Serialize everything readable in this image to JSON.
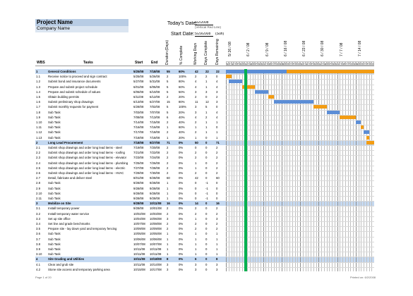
{
  "header": {
    "project_name": "Project Name",
    "company_name": "Company Name",
    "todays_date_label": "Today's Date:",
    "todays_date_value": "6/2/2008",
    "todays_date_sub": "(Vertical Red Line)",
    "start_date_label": "Start Date:",
    "start_date_value": "5/29/2008",
    "start_date_day": "(Sun)"
  },
  "columns": {
    "wbs": "WBS",
    "tasks": "Tasks",
    "start": "Start",
    "end": "End",
    "duration": "Duration (Days)",
    "pct_complete": "% Complete",
    "working_days": "Working Days",
    "days_complete": "Days Complete",
    "days_remaining": "Days Remaining"
  },
  "timeline": {
    "week_labels": [
      "5/ 26 / 08",
      "6 / 2 / 08",
      "6 / 9 / 08",
      "6 / 16 / 08",
      "6 / 23 / 08",
      "6 / 30 / 08",
      "7 / 7 / 08",
      "7 / 14 / 08"
    ],
    "day_letters": [
      "M",
      "T",
      "W",
      "T",
      "F",
      "S",
      "S",
      "M",
      "T",
      "W",
      "T",
      "F",
      "S",
      "S",
      "M",
      "T",
      "W",
      "T",
      "F",
      "S",
      "S",
      "M",
      "T",
      "W",
      "T",
      "F",
      "S",
      "S",
      "M",
      "T",
      "W",
      "T",
      "F",
      "S",
      "S",
      "M",
      "T",
      "W",
      "T",
      "F",
      "S",
      "S",
      "M",
      "T",
      "W",
      "T",
      "F",
      "S",
      "S",
      "M",
      "T",
      "W",
      "T",
      "F",
      "S",
      "S"
    ],
    "today_day_index": 7,
    "total_days": 56
  },
  "colors": {
    "phase_bar": "#5b8dd6",
    "task_bar": "#f39c12",
    "today_line": "#00b050",
    "header_fill": "#b8cce4",
    "phase_row": "#c5d9f1"
  },
  "rows": [
    {
      "wbs": "1",
      "task": "General Conditions",
      "start": "5/25/08",
      "end": "7/18/08",
      "dur": "55",
      "pct": "60%",
      "wd": "42",
      "dc": "22",
      "dr": "22",
      "phase": true,
      "bar": [
        0,
        56
      ],
      "split": 23
    },
    {
      "wbs": "1.1",
      "task": "Receive notice to proceed and sign contract",
      "start": "5/25/08",
      "end": "5/26/08",
      "dur": "2",
      "pct": "100%",
      "wd": "2",
      "dc": "2",
      "dr": "0",
      "bar": [
        0,
        1
      ]
    },
    {
      "wbs": "1.2",
      "task": "Submit bond and insurance documents",
      "start": "5/27/08",
      "end": "5/31/08",
      "dur": "5",
      "pct": "80%",
      "wd": "4",
      "dc": "1",
      "dr": "4",
      "bar": [
        1,
        5
      ]
    },
    {
      "wbs": "1.3",
      "task": "Prepare and submit project schedule",
      "start": "6/01/08",
      "end": "6/05/08",
      "dur": "5",
      "pct": "60%",
      "wd": "4",
      "dc": "1",
      "dr": "4",
      "bar": [
        6,
        10
      ]
    },
    {
      "wbs": "1.4",
      "task": "Prepare and submit schedule of values",
      "start": "6/06/08",
      "end": "6/10/08",
      "dur": "5",
      "pct": "50%",
      "wd": "3",
      "dc": "3",
      "dr": "3",
      "bar": [
        11,
        15
      ]
    },
    {
      "wbs": "1.5",
      "task": "Obtain building permits",
      "start": "6/11/08",
      "end": "6/12/08",
      "dur": "2",
      "pct": "20%",
      "wd": "2",
      "dc": "0",
      "dr": "2",
      "bar": [
        16,
        17
      ]
    },
    {
      "wbs": "1.6",
      "task": "Submit preliminary shop drawings",
      "start": "6/13/08",
      "end": "6/27/08",
      "dur": "15",
      "pct": "80%",
      "wd": "11",
      "dc": "12",
      "dr": "3",
      "bar": [
        18,
        32
      ]
    },
    {
      "wbs": "1.7",
      "task": "Submit monthly requests for payment",
      "start": "6/28/08",
      "end": "7/02/08",
      "dur": "5",
      "pct": "100%",
      "wd": "3",
      "dc": "5",
      "dr": "0",
      "bar": [
        33,
        37
      ]
    },
    {
      "wbs": "1.8",
      "task": "Sub Task",
      "start": "7/03/08",
      "end": "7/07/08",
      "dur": "5",
      "pct": "20%",
      "wd": "3",
      "dc": "1",
      "dr": "4",
      "bar": [
        38,
        42
      ]
    },
    {
      "wbs": "1.9",
      "task": "Sub Task",
      "start": "7/08/08",
      "end": "7/13/08",
      "dur": "6",
      "pct": "40%",
      "wd": "4",
      "dc": "2",
      "dr": "4",
      "bar": [
        43,
        48
      ]
    },
    {
      "wbs": "1.10",
      "task": "Sub Task",
      "start": "7/14/08",
      "end": "7/15/08",
      "dur": "2",
      "pct": "40%",
      "wd": "2",
      "dc": "1",
      "dr": "1",
      "bar": [
        49,
        50
      ]
    },
    {
      "wbs": "1.11",
      "task": "Sub Task",
      "start": "7/16/08",
      "end": "7/16/08",
      "dur": "1",
      "pct": "60%",
      "wd": "1",
      "dc": "1",
      "dr": "0",
      "bar": [
        51,
        51
      ]
    },
    {
      "wbs": "1.12",
      "task": "Sub Task",
      "start": "7/17/08",
      "end": "7/18/08",
      "dur": "2",
      "pct": "40%",
      "wd": "2",
      "dc": "1",
      "dr": "1",
      "bar": [
        52,
        53
      ]
    },
    {
      "wbs": "1.13",
      "task": "Sub Task",
      "start": "7/18/08",
      "end": "7/18/08",
      "dur": "1",
      "pct": "20%",
      "wd": "1",
      "dc": "0",
      "dr": "1",
      "bar": [
        53,
        53
      ]
    },
    {
      "wbs": "2",
      "task": "Long Lead Procurement",
      "start": "7/18/08",
      "end": "9/27/08",
      "dur": "71",
      "pct": "0%",
      "wd": "50",
      "dc": "0",
      "dr": "71",
      "phase": true,
      "bar": [
        53,
        55
      ],
      "split": 53
    },
    {
      "wbs": "2.1",
      "task": "Submit shop drawings and order long lead items - steel",
      "start": "7/19/08",
      "end": "7/20/08",
      "dur": "2",
      "pct": "0%",
      "wd": "0",
      "dc": "0",
      "dr": "2"
    },
    {
      "wbs": "2.2",
      "task": "Submit shop drawings and order long lead items - roofing",
      "start": "7/21/08",
      "end": "7/22/08",
      "dur": "2",
      "pct": "0%",
      "wd": "2",
      "dc": "0",
      "dr": "2"
    },
    {
      "wbs": "2.3",
      "task": "Submit shop drawings and order long lead items - elevator",
      "start": "7/23/08",
      "end": "7/24/08",
      "dur": "2",
      "pct": "0%",
      "wd": "2",
      "dc": "0",
      "dr": "2"
    },
    {
      "wbs": "2.4",
      "task": "Submit shop drawings and order long lead items - plumbing",
      "start": "7/25/08",
      "end": "7/26/08",
      "dur": "2",
      "pct": "0%",
      "wd": "1",
      "dc": "0",
      "dr": "2"
    },
    {
      "wbs": "2.5",
      "task": "Submit shop drawings and order long lead items - electric",
      "start": "7/27/08",
      "end": "7/28/08",
      "dur": "2",
      "pct": "0%",
      "wd": "1",
      "dc": "0",
      "dr": "2"
    },
    {
      "wbs": "2.6",
      "task": "Submit shop drawings and order long lead items - HVAC",
      "start": "7/29/08",
      "end": "7/30/08",
      "dur": "2",
      "pct": "0%",
      "wd": "2",
      "dc": "0",
      "dr": "2"
    },
    {
      "wbs": "2.7",
      "task": "Detail, fabricate and deliver steel",
      "start": "8/01/08",
      "end": "9/28/08",
      "dur": "60",
      "pct": "0%",
      "wd": "42",
      "dc": "0",
      "dr": "60"
    },
    {
      "wbs": "2.8",
      "task": "Sub Task",
      "start": "9/28/08",
      "end": "9/28/08",
      "dur": "1",
      "pct": "0%",
      "wd": "0",
      "dc": "-1",
      "dr": "0"
    },
    {
      "wbs": "2.9",
      "task": "Sub Task",
      "start": "9/28/08",
      "end": "9/28/08",
      "dur": "1",
      "pct": "0%",
      "wd": "0",
      "dc": "-1",
      "dr": "0"
    },
    {
      "wbs": "2.10",
      "task": "Sub Task",
      "start": "9/28/08",
      "end": "9/28/08",
      "dur": "1",
      "pct": "0%",
      "wd": "0",
      "dc": "-1",
      "dr": "0"
    },
    {
      "wbs": "2.11",
      "task": "Sub Task",
      "start": "9/28/08",
      "end": "9/28/08",
      "dur": "1",
      "pct": "0%",
      "wd": "0",
      "dc": "-1",
      "dr": "0"
    },
    {
      "wbs": "3",
      "task": "Mobilize on Site",
      "start": "9/28/08",
      "end": "10/11/08",
      "dur": "16",
      "pct": "0%",
      "wd": "14",
      "dc": "0",
      "dr": "16",
      "phase": true
    },
    {
      "wbs": "3.1",
      "task": "Install temporary power",
      "start": "9/28/08",
      "end": "10/01/08",
      "dur": "2",
      "pct": "0%",
      "wd": "2",
      "dc": "0",
      "dr": "2"
    },
    {
      "wbs": "3.2",
      "task": "Install temporary water service",
      "start": "10/02/08",
      "end": "10/03/08",
      "dur": "2",
      "pct": "0%",
      "wd": "2",
      "dc": "0",
      "dr": "2"
    },
    {
      "wbs": "3.3",
      "task": "Set up site office",
      "start": "10/04/08",
      "end": "10/06/08",
      "dur": "3",
      "pct": "0%",
      "wd": "1",
      "dc": "0",
      "dr": "3"
    },
    {
      "wbs": "3.4",
      "task": "Set line and grade benchmarks",
      "start": "10/07/08",
      "end": "10/08/08",
      "dur": "2",
      "pct": "0%",
      "wd": "2",
      "dc": "0",
      "dr": "2"
    },
    {
      "wbs": "3.5",
      "task": "Prepare site - lay down yard and temporary fencing",
      "start": "10/09/08",
      "end": "10/09/08",
      "dur": "2",
      "pct": "0%",
      "wd": "2",
      "dc": "0",
      "dr": "2"
    },
    {
      "wbs": "3.6",
      "task": "Sub Task",
      "start": "10/05/08",
      "end": "10/05/08",
      "dur": "1",
      "pct": "0%",
      "wd": "1",
      "dc": "0",
      "dr": "1"
    },
    {
      "wbs": "3.7",
      "task": "Sub Task",
      "start": "10/06/08",
      "end": "10/06/08",
      "dur": "1",
      "pct": "0%",
      "wd": "1",
      "dc": "0",
      "dr": "1"
    },
    {
      "wbs": "3.8",
      "task": "Sub Task",
      "start": "10/07/08",
      "end": "10/07/08",
      "dur": "1",
      "pct": "0%",
      "wd": "1",
      "dc": "0",
      "dr": "1"
    },
    {
      "wbs": "3.9",
      "task": "Sub Task",
      "start": "10/11/08",
      "end": "10/11/08",
      "dur": "1",
      "pct": "0%",
      "wd": "1",
      "dc": "0",
      "dr": "1"
    },
    {
      "wbs": "3.10",
      "task": "Sub Task",
      "start": "10/11/08",
      "end": "10/11/08",
      "dur": "1",
      "pct": "0%",
      "wd": "1",
      "dc": "0",
      "dr": "1"
    },
    {
      "wbs": "4",
      "task": "Site Grading and Utilities",
      "start": "10/11/08",
      "end": "10/18/08",
      "dur": "8",
      "pct": "0%",
      "wd": "6",
      "dc": "0",
      "dr": "8",
      "phase": true
    },
    {
      "wbs": "4.1",
      "task": "Clear and grub site",
      "start": "10/11/08",
      "end": "10/14/08",
      "dur": "3",
      "pct": "0%",
      "wd": "3",
      "dc": "0",
      "dr": "3"
    },
    {
      "wbs": "4.2",
      "task": "Stone site access and temporary parking area",
      "start": "10/15/08",
      "end": "10/17/08",
      "dur": "3",
      "pct": "0%",
      "wd": "3",
      "dc": "0",
      "dr": "3"
    }
  ],
  "footer": {
    "page": "Page 1 of 20",
    "printed": "Printed on: 6/2/2008"
  }
}
